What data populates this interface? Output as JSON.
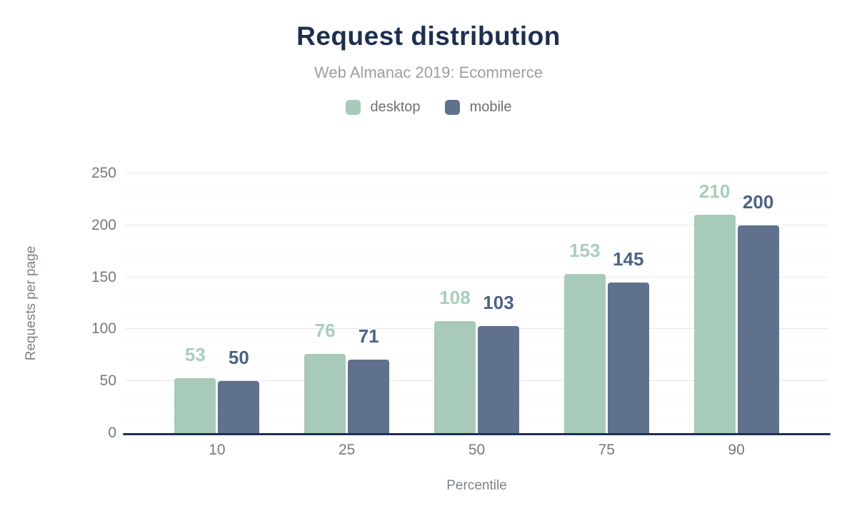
{
  "chart_data": {
    "type": "bar",
    "title": "Request distribution",
    "subtitle": "Web Almanac 2019: Ecommerce",
    "categories": [
      "10",
      "25",
      "50",
      "75",
      "90"
    ],
    "series": [
      {
        "name": "desktop",
        "color": "#a8cab8",
        "label_color": "#a9cdbb",
        "values": [
          53,
          76,
          108,
          153,
          210
        ]
      },
      {
        "name": "mobile",
        "color": "#5f718d",
        "label_color": "#4c6186",
        "values": [
          50,
          71,
          103,
          145,
          200
        ]
      }
    ],
    "xlabel": "Percentile",
    "ylabel": "Requests per page",
    "ylim": [
      0,
      250
    ],
    "yticks": [
      0,
      50,
      100,
      150,
      200,
      250
    ],
    "minor_grid_step": 12.5,
    "grid": "horizontal only; solid major lines every 50, faint dotted minor lines every 12.5",
    "legend_position": "top center",
    "value_labels": "above each bar, colored per series"
  },
  "colors": {
    "title": "#1e2f4f",
    "subtitle": "#9e9e9e",
    "legend_text": "#6f6f6f",
    "axis_title_text": "#7d8286",
    "tick_text": "#75797d",
    "grid_major": "#e7e7e7",
    "grid_minor": "#f1f1f1",
    "baseline": "#1e2f4f",
    "background": "#ffffff"
  }
}
